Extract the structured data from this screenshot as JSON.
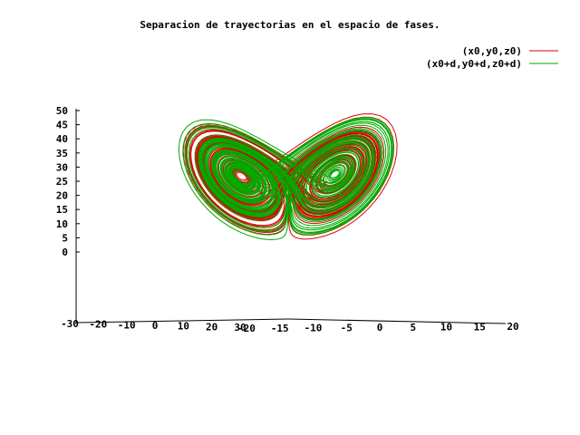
{
  "chart_data": {
    "type": "line",
    "title": "Separacion de trayectorias en el espacio de fases.",
    "legend_position": "top-right",
    "series": [
      {
        "name": "(x0,y0,z0)",
        "color": "#dd0000"
      },
      {
        "name": "(x0+d,y0+d,z0+d)",
        "color": "#00aa00"
      }
    ],
    "z_axis": {
      "ticks": [
        "0",
        "5",
        "10",
        "15",
        "20",
        "25",
        "30",
        "35",
        "40",
        "45",
        "50"
      ],
      "range": [
        0,
        50
      ]
    },
    "x_axis": {
      "ticks": [
        "-30",
        "-20",
        "-10",
        "0",
        "10",
        "20",
        "30"
      ],
      "range": [
        -30,
        30
      ]
    },
    "y_axis": {
      "ticks": [
        "-20",
        "-15",
        "-10",
        "-5",
        "0",
        "5",
        "10",
        "15",
        "20"
      ],
      "range": [
        -20,
        20
      ]
    }
  }
}
